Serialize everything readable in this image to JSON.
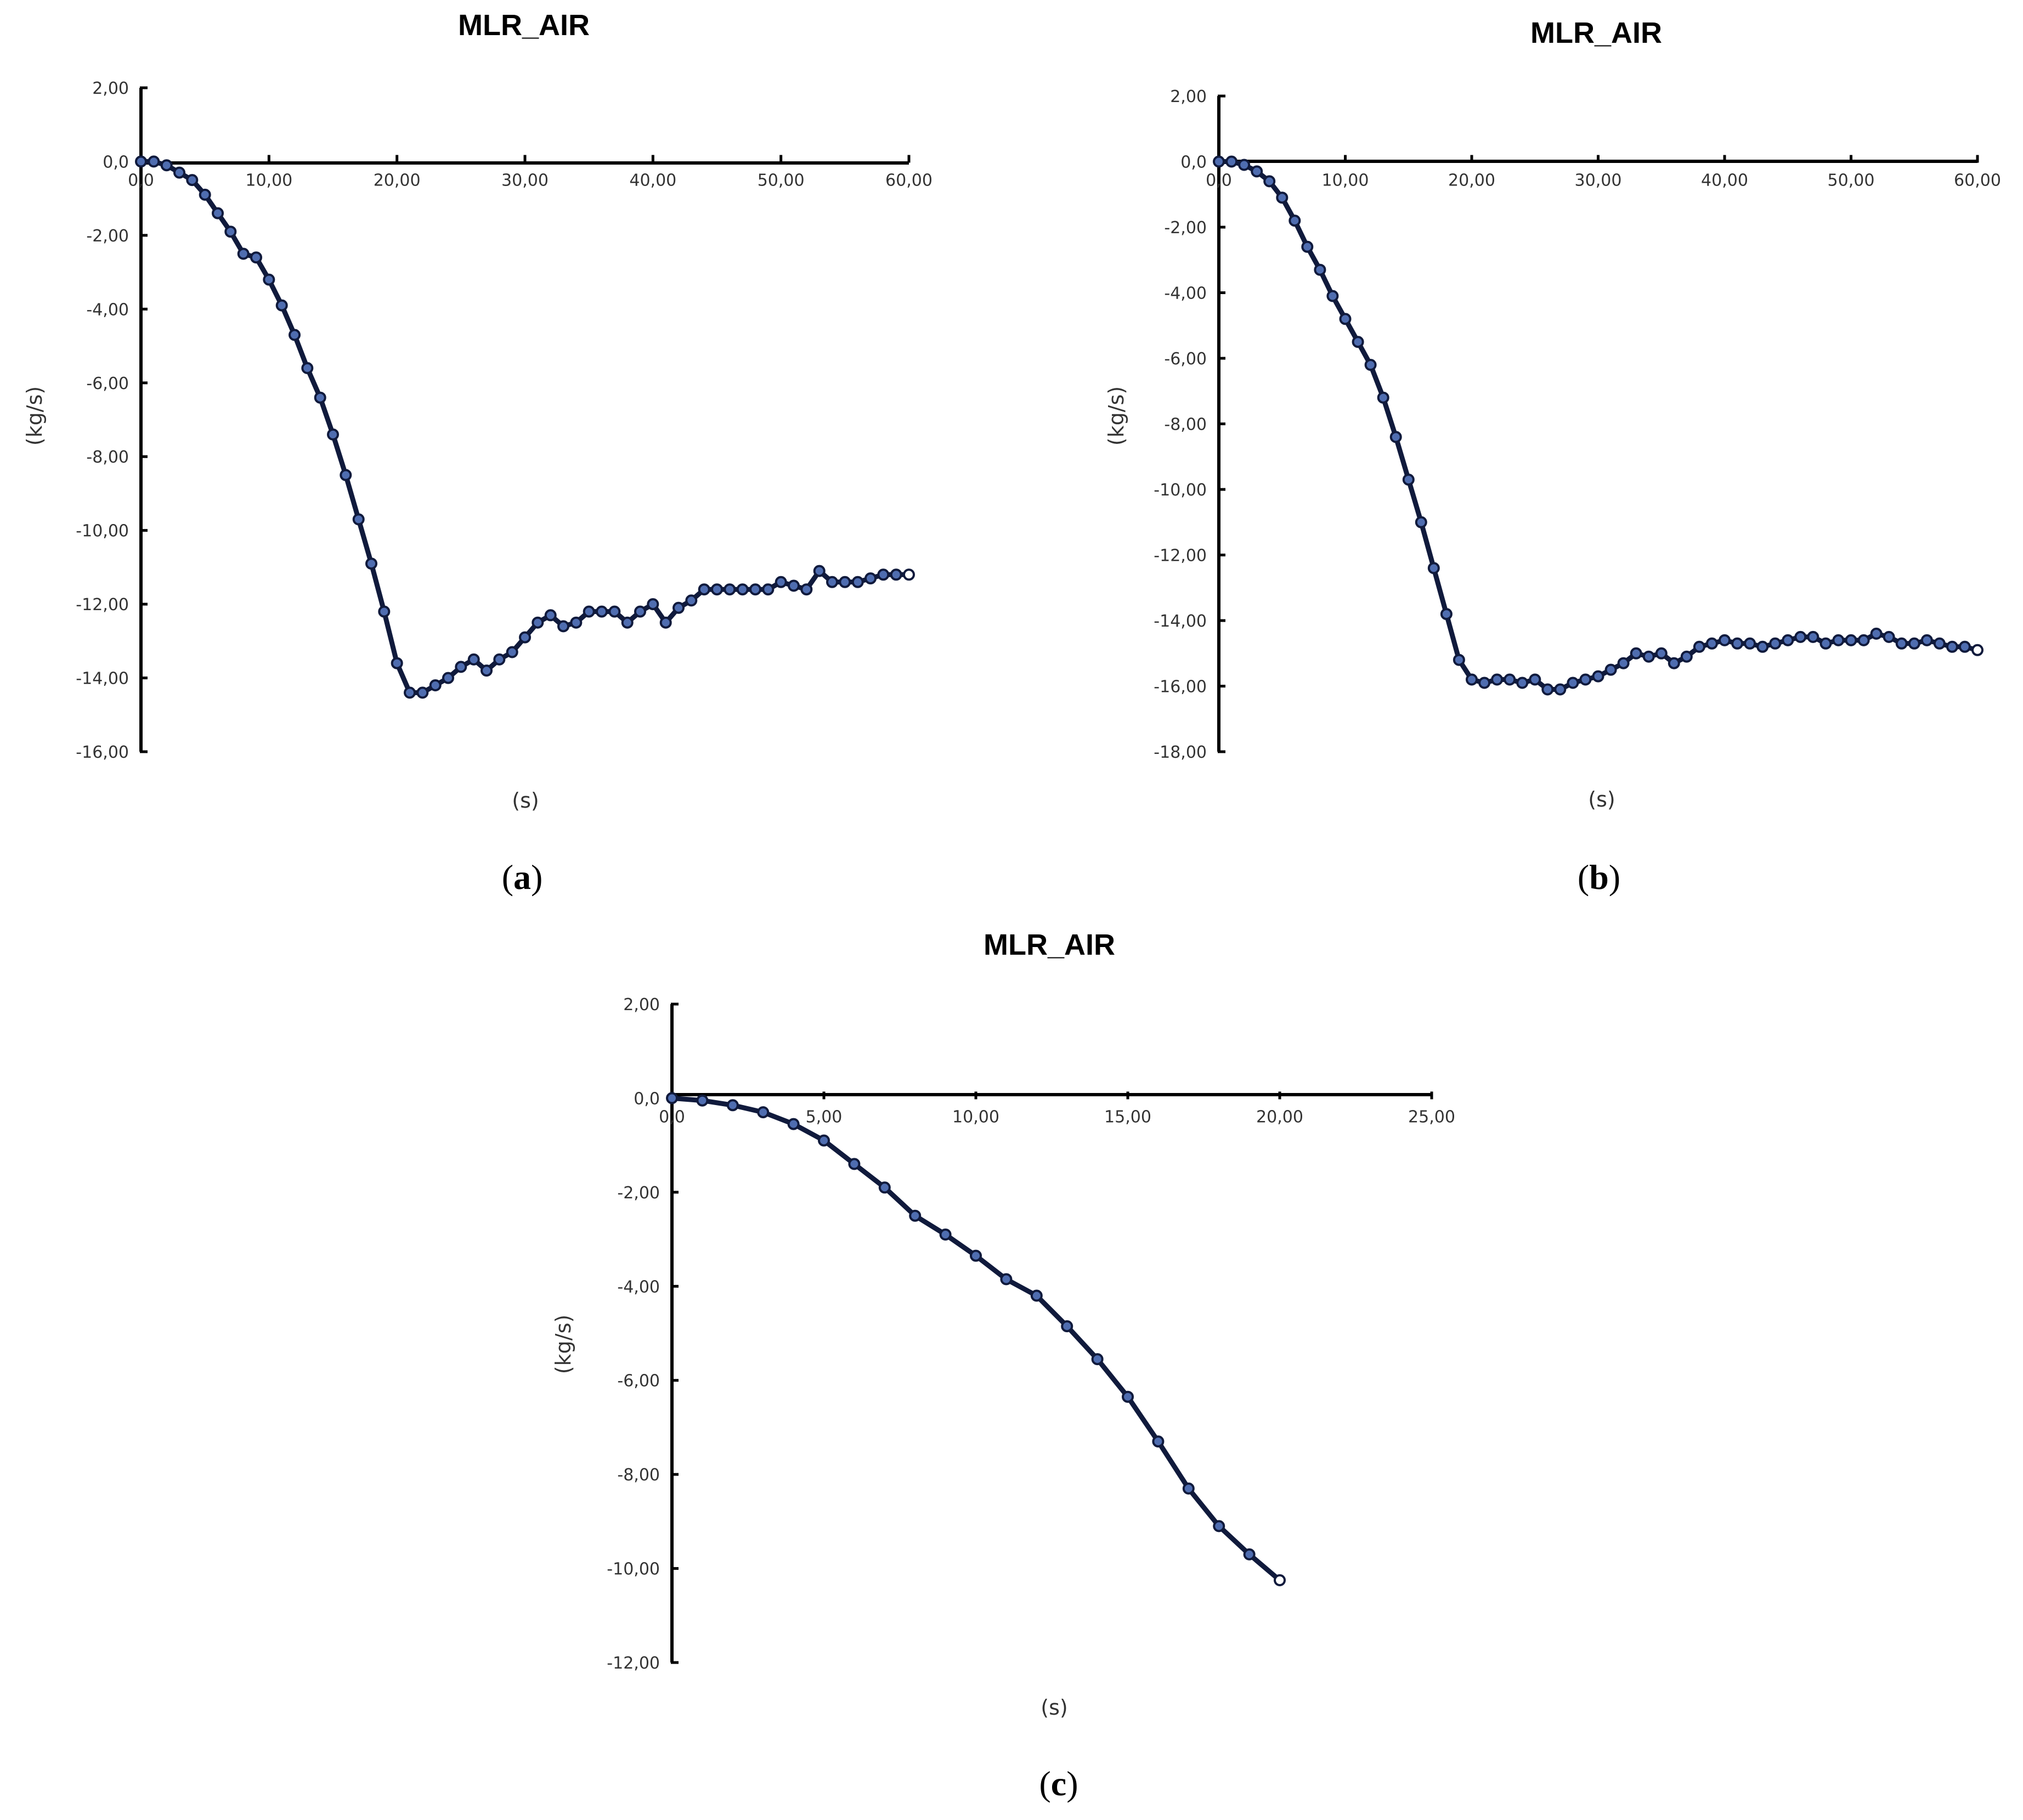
{
  "figure": {
    "panel_labels": [
      "a",
      "b",
      "c"
    ]
  },
  "chart_data": [
    {
      "type": "line",
      "title": "MLR_AIR",
      "xlabel": "(s)",
      "ylabel": "(kg/s)",
      "xlim": [
        0,
        60
      ],
      "ylim": [
        -16,
        2
      ],
      "x_ticks": [
        0,
        10,
        20,
        30,
        40,
        50,
        60
      ],
      "x_tick_labels": [
        "0,0",
        "10,00",
        "20,00",
        "30,00",
        "40,00",
        "50,00",
        "60,00"
      ],
      "y_ticks": [
        2,
        0,
        -2,
        -4,
        -6,
        -8,
        -10,
        -12,
        -14,
        -16
      ],
      "y_tick_labels": [
        "2,00",
        "0,0",
        "-2,00",
        "-4,00",
        "-6,00",
        "-8,00",
        "-10,00",
        "-12,00",
        "-14,00",
        "-16,00"
      ],
      "grid": false,
      "legend": "none",
      "series_color": "#101a3c",
      "marker_color": "#4f6db0",
      "series": [
        {
          "x": [
            0,
            1,
            2,
            3,
            4,
            5,
            6,
            7,
            8,
            9,
            10,
            11,
            12,
            13,
            14,
            15,
            16,
            17,
            18,
            19,
            20,
            21,
            22,
            23,
            24,
            25,
            26,
            27,
            28,
            29,
            30,
            31,
            32,
            33,
            34,
            35,
            36,
            37,
            38,
            39,
            40,
            41,
            42,
            43,
            44,
            45,
            46,
            47,
            48,
            49,
            50,
            51,
            52,
            53,
            54,
            55,
            56,
            57,
            58,
            59,
            60
          ],
          "y": [
            0,
            0,
            -0.1,
            -0.3,
            -0.5,
            -0.9,
            -1.4,
            -1.9,
            -2.5,
            -2.6,
            -3.2,
            -3.9,
            -4.7,
            -5.6,
            -6.4,
            -7.4,
            -8.5,
            -9.7,
            -10.9,
            -12.2,
            -13.6,
            -14.4,
            -14.4,
            -14.2,
            -14.0,
            -13.7,
            -13.5,
            -13.8,
            -13.5,
            -13.3,
            -12.9,
            -12.5,
            -12.3,
            -12.6,
            -12.5,
            -12.2,
            -12.2,
            -12.2,
            -12.5,
            -12.2,
            -12.0,
            -12.5,
            -12.1,
            -11.9,
            -11.6,
            -11.6,
            -11.6,
            -11.6,
            -11.6,
            -11.6,
            -11.4,
            -11.5,
            -11.6,
            -11.1,
            -11.4,
            -11.4,
            -11.4,
            -11.3,
            -11.2,
            -11.2,
            -11.2
          ]
        }
      ]
    },
    {
      "type": "line",
      "title": "MLR_AIR",
      "xlabel": "(s)",
      "ylabel": "(kg/s)",
      "xlim": [
        0,
        60
      ],
      "ylim": [
        -18,
        2
      ],
      "x_ticks": [
        0,
        10,
        20,
        30,
        40,
        50,
        60
      ],
      "x_tick_labels": [
        "0,0",
        "10,00",
        "20,00",
        "30,00",
        "40,00",
        "50,00",
        "60,00"
      ],
      "y_ticks": [
        2,
        0,
        -2,
        -4,
        -6,
        -8,
        -10,
        -12,
        -14,
        -16,
        -18
      ],
      "y_tick_labels": [
        "2,00",
        "0,0",
        "-2,00",
        "-4,00",
        "-6,00",
        "-8,00",
        "-10,00",
        "-12,00",
        "-14,00",
        "-16,00",
        "-18,00"
      ],
      "grid": false,
      "legend": "none",
      "series_color": "#101a3c",
      "marker_color": "#4f6db0",
      "series": [
        {
          "x": [
            0,
            1,
            2,
            3,
            4,
            5,
            6,
            7,
            8,
            9,
            10,
            11,
            12,
            13,
            14,
            15,
            16,
            17,
            18,
            19,
            20,
            21,
            22,
            23,
            24,
            25,
            26,
            27,
            28,
            29,
            30,
            31,
            32,
            33,
            34,
            35,
            36,
            37,
            38,
            39,
            40,
            41,
            42,
            43,
            44,
            45,
            46,
            47,
            48,
            49,
            50,
            51,
            52,
            53,
            54,
            55,
            56,
            57,
            58,
            59,
            60
          ],
          "y": [
            0,
            0,
            -0.1,
            -0.3,
            -0.6,
            -1.1,
            -1.8,
            -2.6,
            -3.3,
            -4.1,
            -4.8,
            -5.5,
            -6.2,
            -7.2,
            -8.4,
            -9.7,
            -11.0,
            -12.4,
            -13.8,
            -15.2,
            -15.8,
            -15.9,
            -15.8,
            -15.8,
            -15.9,
            -15.8,
            -16.1,
            -16.1,
            -15.9,
            -15.8,
            -15.7,
            -15.5,
            -15.3,
            -15.0,
            -15.1,
            -15.0,
            -15.3,
            -15.1,
            -14.8,
            -14.7,
            -14.6,
            -14.7,
            -14.7,
            -14.8,
            -14.7,
            -14.6,
            -14.5,
            -14.5,
            -14.7,
            -14.6,
            -14.6,
            -14.6,
            -14.4,
            -14.5,
            -14.7,
            -14.7,
            -14.6,
            -14.7,
            -14.8,
            -14.8,
            -14.9
          ]
        }
      ]
    },
    {
      "type": "line",
      "title": "MLR_AIR",
      "xlabel": "(s)",
      "ylabel": "(kg/s)",
      "xlim": [
        0,
        25
      ],
      "ylim": [
        -12,
        2
      ],
      "x_ticks": [
        0,
        5,
        10,
        15,
        20,
        25
      ],
      "x_tick_labels": [
        "0,0",
        "5,00",
        "10,00",
        "15,00",
        "20,00",
        "25,00"
      ],
      "y_ticks": [
        2,
        0,
        -2,
        -4,
        -6,
        -8,
        -10,
        -12
      ],
      "y_tick_labels": [
        "2,00",
        "0,0",
        "-2,00",
        "-4,00",
        "-6,00",
        "-8,00",
        "-10,00",
        "-12,00"
      ],
      "grid": false,
      "legend": "none",
      "series_color": "#101a3c",
      "marker_color": "#4f6db0",
      "series": [
        {
          "x": [
            0,
            1,
            2,
            3,
            4,
            5,
            6,
            7,
            8,
            9,
            10,
            11,
            12,
            13,
            14,
            15,
            16,
            17,
            18,
            19,
            20
          ],
          "y": [
            0,
            -0.05,
            -0.15,
            -0.3,
            -0.55,
            -0.9,
            -1.4,
            -1.9,
            -2.5,
            -2.9,
            -3.35,
            -3.85,
            -4.2,
            -4.85,
            -5.55,
            -6.35,
            -7.3,
            -8.3,
            -9.1,
            -9.7,
            -10.25
          ]
        }
      ]
    }
  ]
}
